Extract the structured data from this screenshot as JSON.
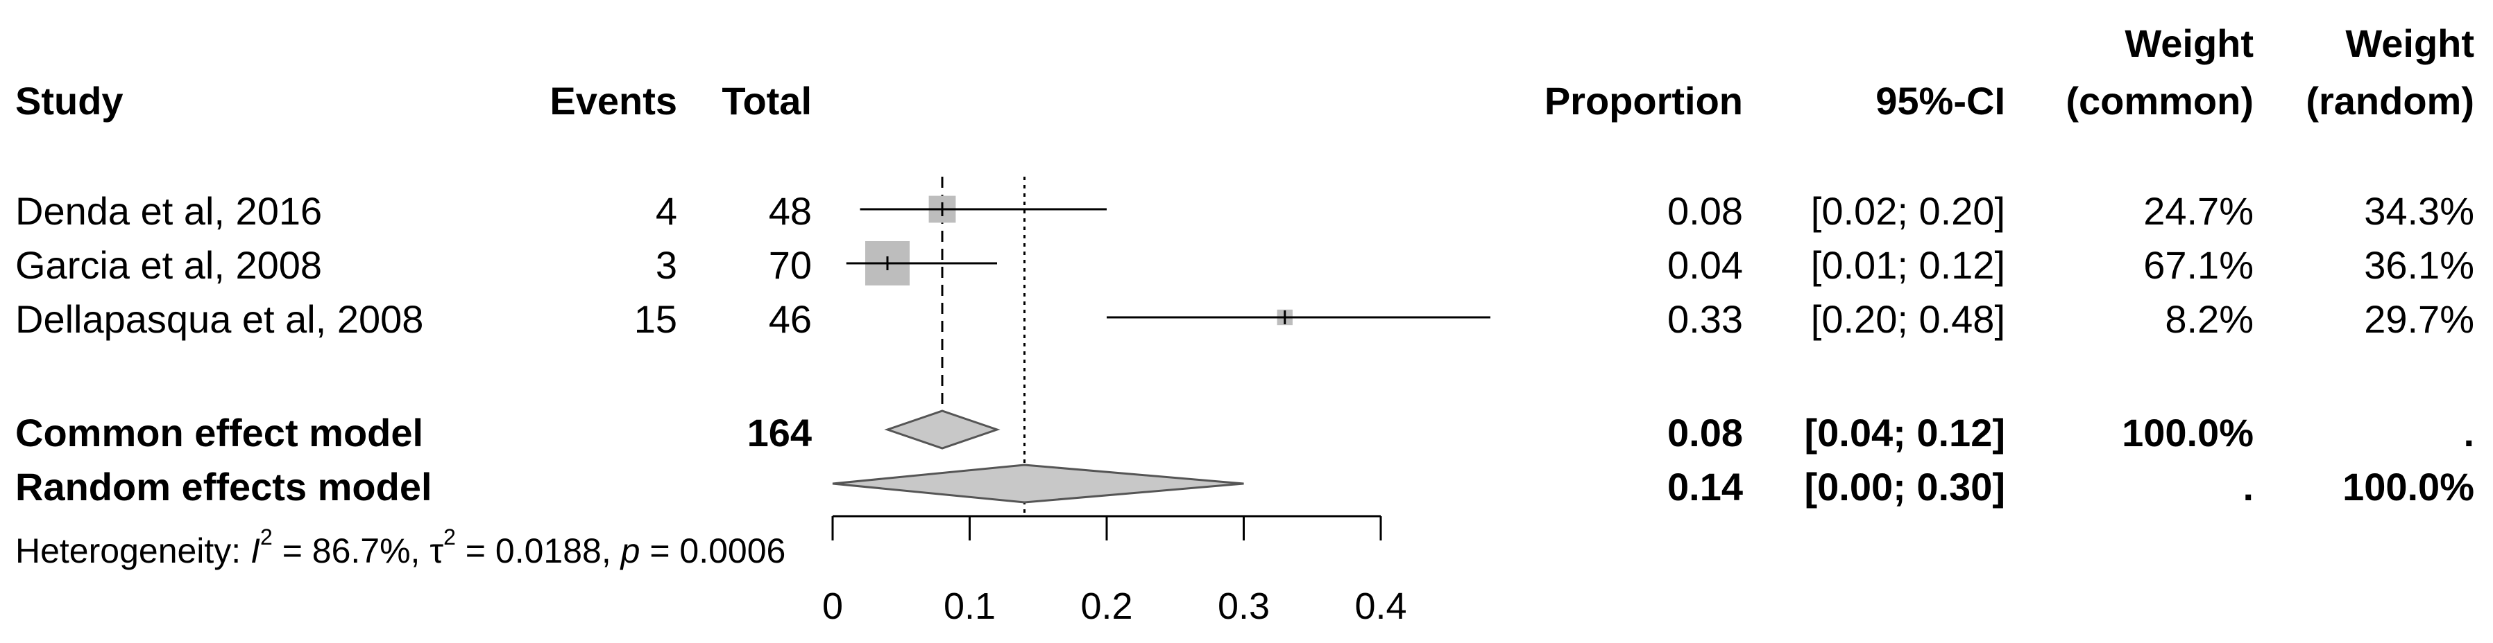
{
  "headers": {
    "study": "Study",
    "events": "Events",
    "total": "Total",
    "proportion": "Proportion",
    "ci": "95%-CI",
    "weight_common_l1": "Weight",
    "weight_common_l2": "(common)",
    "weight_random_l1": "Weight",
    "weight_random_l2": "(random)"
  },
  "studies": [
    {
      "name": "Denda et al, 2016",
      "events": "4",
      "total": "48",
      "proportion": "0.08",
      "ci": "[0.02; 0.20]",
      "w_common": "24.7%",
      "w_random": "34.3%"
    },
    {
      "name": "Garcia et al, 2008",
      "events": "3",
      "total": "70",
      "proportion": "0.04",
      "ci": "[0.01; 0.12]",
      "w_common": "67.1%",
      "w_random": "36.1%"
    },
    {
      "name": "Dellapasqua et al, 2008",
      "events": "15",
      "total": "46",
      "proportion": "0.33",
      "ci": "[0.20; 0.48]",
      "w_common": "8.2%",
      "w_random": "29.7%"
    }
  ],
  "models": {
    "common": {
      "name": "Common effect model",
      "total": "164",
      "proportion": "0.08",
      "ci": "[0.04; 0.12]",
      "w_common": "100.0%",
      "w_random": "."
    },
    "random": {
      "name": "Random effects model",
      "total": "",
      "proportion": "0.14",
      "ci": "[0.00; 0.30]",
      "w_common": ".",
      "w_random": "100.0%"
    }
  },
  "heterogeneity": {
    "prefix": "Heterogeneity: ",
    "i_sym": "I",
    "sup2": "2",
    "i2_text": " = 86.7%, ",
    "tau_sym": "τ",
    "tau2_text": " = 0.0188, ",
    "p_sym": "p",
    "p_text": " = 0.0006"
  },
  "chart_data": {
    "type": "forest",
    "xlim": [
      0,
      0.4
    ],
    "x_ticks": [
      0,
      0.1,
      0.2,
      0.3,
      0.4
    ],
    "x_tick_labels": [
      "0",
      "0.1",
      "0.2",
      "0.3",
      "0.4"
    ],
    "studies": [
      {
        "name": "Denda et al, 2016",
        "estimate": 0.08,
        "lower": 0.02,
        "upper": 0.2,
        "weight_common": 24.7
      },
      {
        "name": "Garcia et al, 2008",
        "estimate": 0.04,
        "lower": 0.01,
        "upper": 0.12,
        "weight_common": 67.1
      },
      {
        "name": "Dellapasqua et al, 2008",
        "estimate": 0.33,
        "lower": 0.2,
        "upper": 0.48,
        "weight_common": 8.2
      }
    ],
    "common_effect": {
      "estimate": 0.08,
      "lower": 0.04,
      "upper": 0.12
    },
    "random_effects": {
      "estimate": 0.14,
      "lower": 0.0,
      "upper": 0.3
    },
    "colors": {
      "square": "#bdbdbd",
      "diamond": "#c8c8c8",
      "line": "#000000"
    }
  }
}
